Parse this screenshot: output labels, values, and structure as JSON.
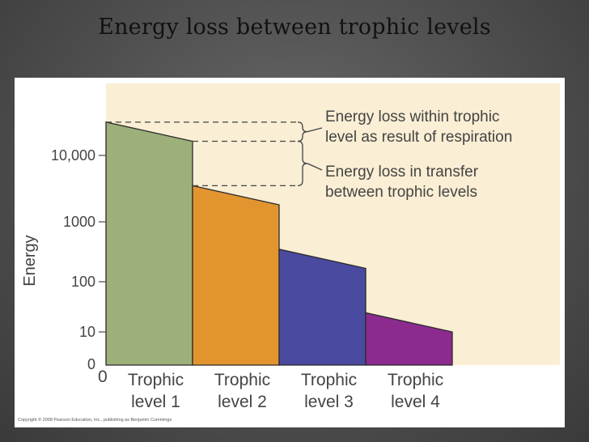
{
  "slide": {
    "title": "Energy loss between trophic levels"
  },
  "figure": {
    "copyright": "Copyright © 2008 Pearson Education, Inc., publishing as Benjamin Cummings"
  },
  "colors": {
    "plot_background": "#faeed4",
    "series_colors": [
      "#9db07a",
      "#e2952f",
      "#4a4aa0",
      "#8b2a8f"
    ]
  },
  "chart_data": {
    "type": "bar",
    "title": "",
    "ylabel": "Energy",
    "xlabel": "",
    "y_scale": "log",
    "y_ticks": [
      {
        "label": "0",
        "value": 0
      },
      {
        "label": "10",
        "value": 10
      },
      {
        "label": "100",
        "value": 100
      },
      {
        "label": "1000",
        "value": 1000
      },
      {
        "label": "10,000",
        "value": 10000
      }
    ],
    "x_origin_label": "0",
    "categories": [
      "Trophic level 1",
      "Trophic level 2",
      "Trophic level 3",
      "Trophic level 4"
    ],
    "category_lines": [
      [
        "Trophic",
        "level 1"
      ],
      [
        "Trophic",
        "level 2"
      ],
      [
        "Trophic",
        "level 3"
      ],
      [
        "Trophic",
        "level 4"
      ]
    ],
    "bars": [
      {
        "start_value": 20000,
        "end_value": 10000
      },
      {
        "start_value": 2000,
        "end_value": 1000
      },
      {
        "start_value": 200,
        "end_value": 100
      },
      {
        "start_value": 20,
        "end_value": 10
      }
    ],
    "annotations": [
      {
        "text_lines": [
          "Energy loss within trophic",
          "level as result of respiration"
        ]
      },
      {
        "text_lines": [
          "Energy loss in transfer",
          "between trophic levels"
        ]
      }
    ]
  }
}
